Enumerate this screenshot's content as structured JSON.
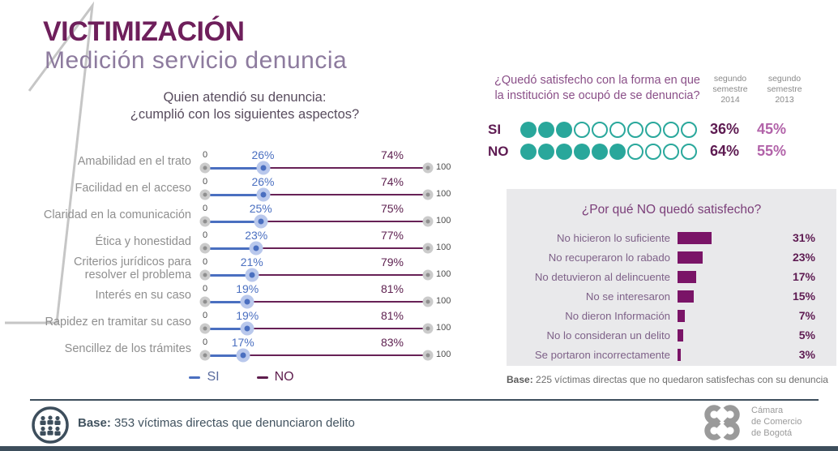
{
  "header": {
    "number": "1",
    "title": "VICTIMIZACIÓN",
    "subtitle": "Medición servicio denuncia"
  },
  "dumbbell": {
    "title": "Quien atendió su denuncia:\n¿cumplió con los siguientes aspectos?",
    "axis_min_label": "0",
    "axis_max_label": "100",
    "legend_si": "SI",
    "legend_no": "NO",
    "rows": [
      {
        "label": "Amabilidad en el trato",
        "si": 26,
        "si_label": "26%",
        "no_label": "74%"
      },
      {
        "label": "Facilidad en el acceso",
        "si": 26,
        "si_label": "26%",
        "no_label": "74%"
      },
      {
        "label": "Claridad en la comunicación",
        "si": 25,
        "si_label": "25%",
        "no_label": "75%"
      },
      {
        "label": "Ética y honestidad",
        "si": 23,
        "si_label": "23%",
        "no_label": "77%"
      },
      {
        "label": "Criterios jurídicos para resolver el problema",
        "si": 21,
        "si_label": "21%",
        "no_label": "79%"
      },
      {
        "label": "Interés en su caso",
        "si": 19,
        "si_label": "19%",
        "no_label": "81%"
      },
      {
        "label": "Rapidez en tramitar su caso",
        "si": 19,
        "si_label": "19%",
        "no_label": "81%"
      },
      {
        "label": "Sencillez de los trámites",
        "si": 17,
        "si_label": "17%",
        "no_label": "83%"
      }
    ]
  },
  "satisfaction": {
    "question": "¿Quedó satisfecho con la forma en que\nla institución se ocupó de se denuncia?",
    "col_2014": "segundo\nsemestre\n2014",
    "col_2013": "segundo\nsemestre\n2013",
    "rows": [
      {
        "label": "SI",
        "filled": 3,
        "total": 10,
        "pct_2014": "36%",
        "pct_2013": "45%"
      },
      {
        "label": "NO",
        "filled": 6,
        "total": 10,
        "pct_2014": "64%",
        "pct_2013": "55%"
      }
    ]
  },
  "reasons": {
    "title": "¿Por qué NO quedó satisfecho?",
    "rows": [
      {
        "label": "No hicieron lo suficiente",
        "value": 31,
        "value_label": "31%"
      },
      {
        "label": "No recuperaron lo rabado",
        "value": 23,
        "value_label": "23%"
      },
      {
        "label": "No detuvieron al delincuente",
        "value": 17,
        "value_label": "17%"
      },
      {
        "label": "No se interesaron",
        "value": 15,
        "value_label": "15%"
      },
      {
        "label": "No dieron Información",
        "value": 7,
        "value_label": "7%"
      },
      {
        "label": "No lo consideran un delito",
        "value": 5,
        "value_label": "5%"
      },
      {
        "label": "Se portaron incorrectamente",
        "value": 3,
        "value_label": "3%"
      }
    ],
    "base_bold": "Base:",
    "base_text": " 225 víctimas directas que no quedaron satisfechas con su denuncia"
  },
  "footer": {
    "base_bold": "Base:",
    "base_text": " 353 víctimas directas que denunciaron delito",
    "logo_text": "Cámara\nde Comercio\nde Bogotá"
  },
  "colors": {
    "title_plum": "#6e1f5b",
    "subtitle_purple": "#8d7b9e",
    "si_blue": "#4a6fc0",
    "no_plum": "#672156",
    "teal": "#29a79b",
    "orchid_2013": "#b263a9",
    "bar_magenta": "#7a1467",
    "panel_gray": "#e9e9eb",
    "footer_navy": "#3d4e5c"
  },
  "chart_data": [
    {
      "type": "line",
      "subtype": "dumbbell",
      "title": "Quien atendió su denuncia: ¿cumplió con los siguientes aspectos?",
      "categories": [
        "Amabilidad en el trato",
        "Facilidad en el acceso",
        "Claridad en la comunicación",
        "Ética y honestidad",
        "Criterios jurídicos para resolver el problema",
        "Interés en su caso",
        "Rapidez en tramitar su caso",
        "Sencillez de los trámites"
      ],
      "series": [
        {
          "name": "SI",
          "values": [
            26,
            26,
            25,
            23,
            21,
            19,
            19,
            17
          ]
        },
        {
          "name": "NO",
          "values": [
            74,
            74,
            75,
            77,
            79,
            81,
            81,
            83
          ]
        }
      ],
      "xlim": [
        0,
        100
      ],
      "unit": "%",
      "legend_position": "bottom"
    },
    {
      "type": "table",
      "subtype": "dot-matrix",
      "title": "¿Quedó satisfecho con la forma en que la institución se ocupó de se denuncia?",
      "categories": [
        "SI",
        "NO"
      ],
      "series": [
        {
          "name": "segundo semestre 2014",
          "values": [
            36,
            64
          ]
        },
        {
          "name": "segundo semestre 2013",
          "values": [
            45,
            55
          ]
        }
      ],
      "dots_total": 10,
      "dots_filled": [
        3,
        6
      ],
      "unit": "%"
    },
    {
      "type": "bar",
      "title": "¿Por qué NO quedó satisfecho?",
      "categories": [
        "No hicieron lo suficiente",
        "No recuperaron lo rabado",
        "No detuvieron al delincuente",
        "No se interesaron",
        "No dieron Información",
        "No lo consideran un delito",
        "Se portaron incorrectamente"
      ],
      "values": [
        31,
        23,
        17,
        15,
        7,
        5,
        3
      ],
      "unit": "%",
      "orientation": "horizontal",
      "base": "225 víctimas directas que no quedaron satisfechas con su denuncia"
    }
  ]
}
